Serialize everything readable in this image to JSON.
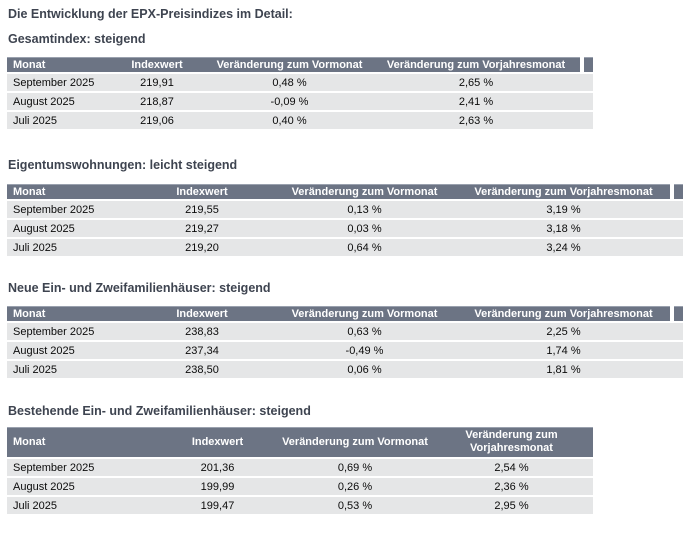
{
  "page": {
    "title": "Die Entwicklung der EPX-Preisindizes im Detail:"
  },
  "columns": [
    "Monat",
    "Indexwert",
    "Veränderung zum Vormonat",
    "Veränderung zum Vorjahresmonat"
  ],
  "sections": [
    {
      "title": "Gesamtindex: steigend",
      "rows": [
        [
          "September 2025",
          "219,91",
          "0,48 %",
          "2,65 %"
        ],
        [
          "August 2025",
          "218,87",
          "-0,09 %",
          "2,41 %"
        ],
        [
          "Juli 2025",
          "219,06",
          "0,40 %",
          "2,63 %"
        ]
      ]
    },
    {
      "title": "Eigentumswohnungen: leicht steigend",
      "rows": [
        [
          "September 2025",
          "219,55",
          "0,13 %",
          "3,19 %"
        ],
        [
          "August 2025",
          "219,27",
          "0,03 %",
          "3,18 %"
        ],
        [
          "Juli 2025",
          "219,20",
          "0,64 %",
          "3,24 %"
        ]
      ]
    },
    {
      "title": "Neue Ein- und Zweifamilienhäuser: steigend",
      "rows": [
        [
          "September 2025",
          "238,83",
          "0,63 %",
          "2,25 %"
        ],
        [
          "August 2025",
          "237,34",
          "-0,49 %",
          "1,74 %"
        ],
        [
          "Juli 2025",
          "238,50",
          "0,06 %",
          "1,81 %"
        ]
      ]
    },
    {
      "title": "Bestehende Ein- und Zweifamilienhäuser: steigend",
      "rows": [
        [
          "September 2025",
          "201,36",
          "0,69 %",
          "2,54 %"
        ],
        [
          "August 2025",
          "199,99",
          "0,26 %",
          "2,36 %"
        ],
        [
          "Juli 2025",
          "199,47",
          "0,53 %",
          "2,95 %"
        ]
      ]
    }
  ],
  "colors": {
    "header_bg": "#6c7484",
    "header_text": "#ffffff",
    "row_bg": "#e5e6e7",
    "title_text": "#3e4450"
  }
}
